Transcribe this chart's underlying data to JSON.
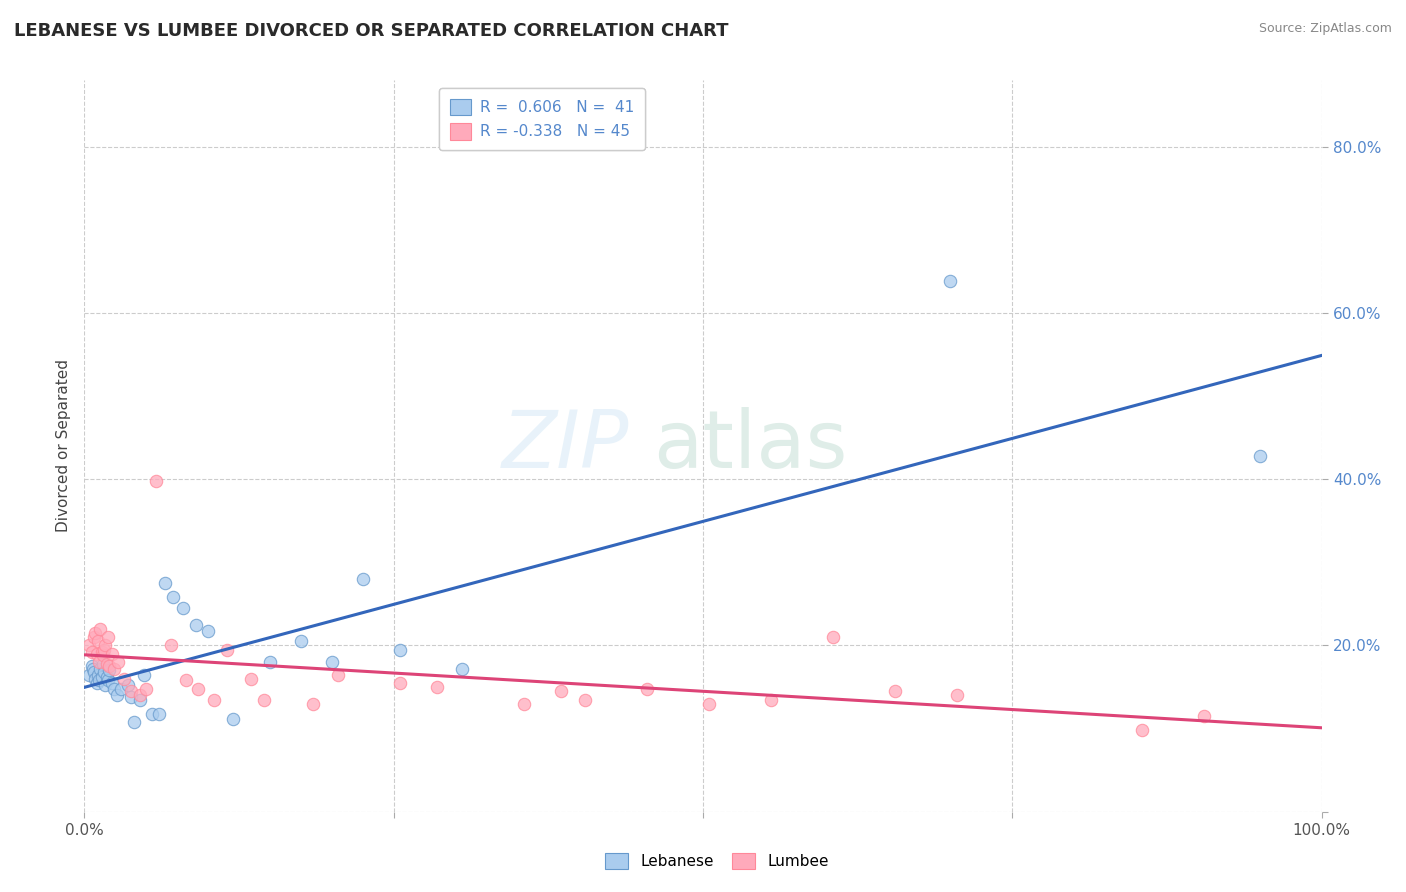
{
  "title": "LEBANESE VS LUMBEE DIVORCED OR SEPARATED CORRELATION CHART",
  "source": "Source: ZipAtlas.com",
  "ylabel": "Divorced or Separated",
  "xlim": [
    0.0,
    1.0
  ],
  "ylim": [
    0.0,
    0.88
  ],
  "xticks": [
    0.0,
    0.25,
    0.5,
    0.75,
    1.0
  ],
  "xticklabels": [
    "0.0%",
    "",
    "",
    "",
    "100.0%"
  ],
  "yticks": [
    0.0,
    0.2,
    0.4,
    0.6,
    0.8
  ],
  "yticklabels": [
    "",
    "20.0%",
    "40.0%",
    "60.0%",
    "80.0%"
  ],
  "lebanese_R": 0.606,
  "lebanese_N": 41,
  "lumbee_R": -0.338,
  "lumbee_N": 45,
  "blue_dot_color": "#aaccee",
  "pink_dot_color": "#ffaabb",
  "blue_edge_color": "#6699cc",
  "pink_edge_color": "#ff8899",
  "line_blue": "#3366bb",
  "line_pink": "#dd4477",
  "tick_color": "#5588cc",
  "legend_label_blue": "Lebanese",
  "legend_label_pink": "Lumbee",
  "lebanese_points": [
    [
      0.004,
      0.165
    ],
    [
      0.006,
      0.175
    ],
    [
      0.007,
      0.172
    ],
    [
      0.008,
      0.168
    ],
    [
      0.009,
      0.16
    ],
    [
      0.01,
      0.155
    ],
    [
      0.011,
      0.165
    ],
    [
      0.012,
      0.158
    ],
    [
      0.013,
      0.172
    ],
    [
      0.014,
      0.162
    ],
    [
      0.015,
      0.178
    ],
    [
      0.016,
      0.168
    ],
    [
      0.017,
      0.152
    ],
    [
      0.018,
      0.162
    ],
    [
      0.019,
      0.158
    ],
    [
      0.02,
      0.17
    ],
    [
      0.022,
      0.155
    ],
    [
      0.024,
      0.148
    ],
    [
      0.026,
      0.14
    ],
    [
      0.03,
      0.148
    ],
    [
      0.035,
      0.152
    ],
    [
      0.038,
      0.138
    ],
    [
      0.04,
      0.108
    ],
    [
      0.045,
      0.135
    ],
    [
      0.048,
      0.165
    ],
    [
      0.055,
      0.118
    ],
    [
      0.06,
      0.118
    ],
    [
      0.065,
      0.275
    ],
    [
      0.072,
      0.258
    ],
    [
      0.08,
      0.245
    ],
    [
      0.09,
      0.225
    ],
    [
      0.1,
      0.218
    ],
    [
      0.12,
      0.112
    ],
    [
      0.15,
      0.18
    ],
    [
      0.175,
      0.205
    ],
    [
      0.2,
      0.18
    ],
    [
      0.225,
      0.28
    ],
    [
      0.255,
      0.195
    ],
    [
      0.305,
      0.172
    ],
    [
      0.7,
      0.638
    ],
    [
      0.95,
      0.428
    ]
  ],
  "lumbee_points": [
    [
      0.004,
      0.2
    ],
    [
      0.006,
      0.192
    ],
    [
      0.008,
      0.21
    ],
    [
      0.009,
      0.215
    ],
    [
      0.01,
      0.19
    ],
    [
      0.011,
      0.205
    ],
    [
      0.012,
      0.18
    ],
    [
      0.013,
      0.22
    ],
    [
      0.014,
      0.192
    ],
    [
      0.015,
      0.188
    ],
    [
      0.016,
      0.195
    ],
    [
      0.017,
      0.2
    ],
    [
      0.018,
      0.178
    ],
    [
      0.019,
      0.21
    ],
    [
      0.02,
      0.175
    ],
    [
      0.022,
      0.19
    ],
    [
      0.024,
      0.172
    ],
    [
      0.027,
      0.18
    ],
    [
      0.032,
      0.16
    ],
    [
      0.038,
      0.145
    ],
    [
      0.045,
      0.14
    ],
    [
      0.05,
      0.148
    ],
    [
      0.058,
      0.398
    ],
    [
      0.07,
      0.2
    ],
    [
      0.082,
      0.158
    ],
    [
      0.092,
      0.148
    ],
    [
      0.105,
      0.135
    ],
    [
      0.115,
      0.195
    ],
    [
      0.135,
      0.16
    ],
    [
      0.145,
      0.135
    ],
    [
      0.185,
      0.13
    ],
    [
      0.205,
      0.165
    ],
    [
      0.255,
      0.155
    ],
    [
      0.285,
      0.15
    ],
    [
      0.355,
      0.13
    ],
    [
      0.385,
      0.145
    ],
    [
      0.405,
      0.135
    ],
    [
      0.455,
      0.148
    ],
    [
      0.505,
      0.13
    ],
    [
      0.555,
      0.135
    ],
    [
      0.605,
      0.21
    ],
    [
      0.655,
      0.145
    ],
    [
      0.705,
      0.14
    ],
    [
      0.855,
      0.098
    ],
    [
      0.905,
      0.115
    ]
  ]
}
